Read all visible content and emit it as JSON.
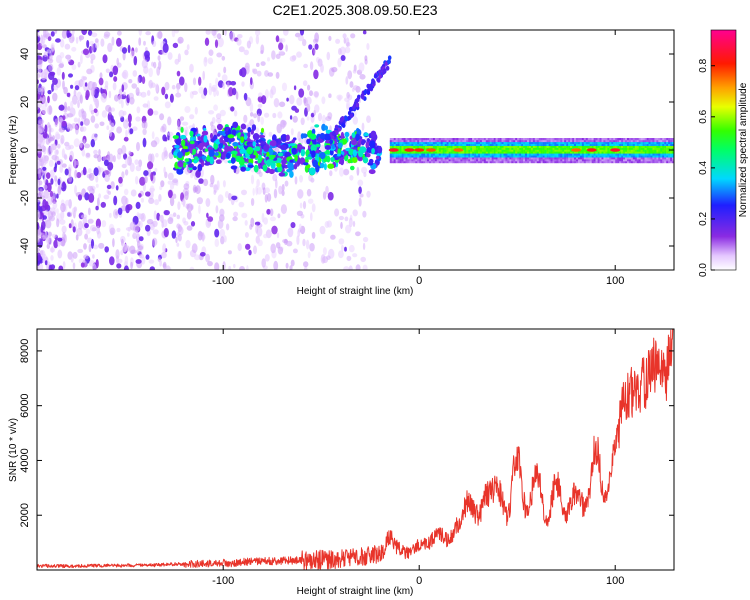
{
  "title": "C2E1.2025.308.09.50.E23",
  "colorbar": {
    "label": "Normalized spectral amplitude",
    "ticks": [
      "0.0",
      "0.2",
      "0.4",
      "0.6",
      "0.8"
    ],
    "tick_values": [
      0.0,
      0.2,
      0.4,
      0.6,
      0.8
    ],
    "range": [
      0,
      0.94
    ]
  },
  "chart_data": [
    {
      "type": "heatmap",
      "xlabel": "Height of straight line (km)",
      "ylabel": "Frequency (Hz)",
      "xlim": [
        -195,
        130
      ],
      "ylim": [
        -50,
        50
      ],
      "x_ticks": [
        -100,
        0,
        100
      ],
      "x_tick_labels": [
        "-100",
        "0",
        "100"
      ],
      "y_ticks": [
        -40,
        -20,
        0,
        20,
        40
      ],
      "y_tick_labels": [
        "-40",
        "-20",
        "0",
        "20",
        "40"
      ],
      "colormap": "rainbow (white→violet→blue→cyan→green→yellow→red→magenta)",
      "features": [
        {
          "region": "noise",
          "x_range": [
            -195,
            -120
          ],
          "freq_range": [
            -50,
            50
          ],
          "amplitude": 0.05
        },
        {
          "region": "scattered signal",
          "x_range": [
            -125,
            -20
          ],
          "freq_range": [
            -10,
            10
          ],
          "amplitude": 0.3
        },
        {
          "region": "steady carrier",
          "x_range": [
            -15,
            130
          ],
          "freq_range": [
            -3,
            3
          ],
          "amplitude": 0.6,
          "peak_amplitude": 0.9
        }
      ]
    },
    {
      "type": "line",
      "xlabel": "Height of straight line (km)",
      "ylabel": "SNR (10 * v/v)",
      "xlim": [
        -195,
        130
      ],
      "ylim": [
        0,
        8800
      ],
      "x_ticks": [
        -100,
        0,
        100
      ],
      "x_tick_labels": [
        "-100",
        "0",
        "100"
      ],
      "y_ticks": [
        2000,
        4000,
        6000,
        8000
      ],
      "y_tick_labels": [
        "2000",
        "4000",
        "6000",
        "8000"
      ],
      "line_color": "#e8342a",
      "series": [
        {
          "x": [
            -195,
            -180,
            -160,
            -140,
            -120,
            -100,
            -80,
            -60,
            -40,
            -30,
            -20,
            -15,
            -10,
            -5,
            0,
            5,
            10,
            15,
            20,
            25,
            30,
            35,
            40,
            45,
            50,
            55,
            60,
            65,
            70,
            75,
            80,
            85,
            90,
            95,
            100,
            105,
            110,
            115,
            120,
            125,
            130
          ],
          "values": [
            150,
            140,
            160,
            170,
            220,
            250,
            320,
            350,
            400,
            500,
            600,
            1200,
            700,
            600,
            900,
            1000,
            1400,
            1100,
            1700,
            2500,
            2000,
            2800,
            3000,
            2000,
            4300,
            2000,
            3700,
            1800,
            3200,
            2000,
            2900,
            2200,
            4500,
            2500,
            4600,
            6400,
            6500,
            6800,
            7500,
            7000,
            8600
          ]
        }
      ]
    }
  ]
}
